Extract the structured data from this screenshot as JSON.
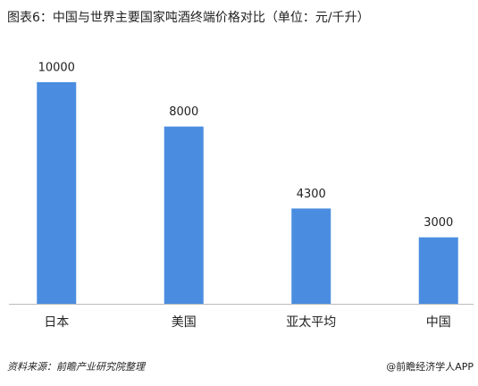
{
  "chart_data": {
    "type": "bar",
    "title": "图表6：中国与世界主要国家吨酒终端价格对比（单位：元/千升）",
    "categories": [
      "日本",
      "美国",
      "亚太平均",
      "中国"
    ],
    "values": [
      10000,
      8000,
      4300,
      3000
    ],
    "color": "#4a8de0",
    "source": "资料来源：前瞻产业研究院整理",
    "credit": "@前瞻经济学人APP"
  }
}
